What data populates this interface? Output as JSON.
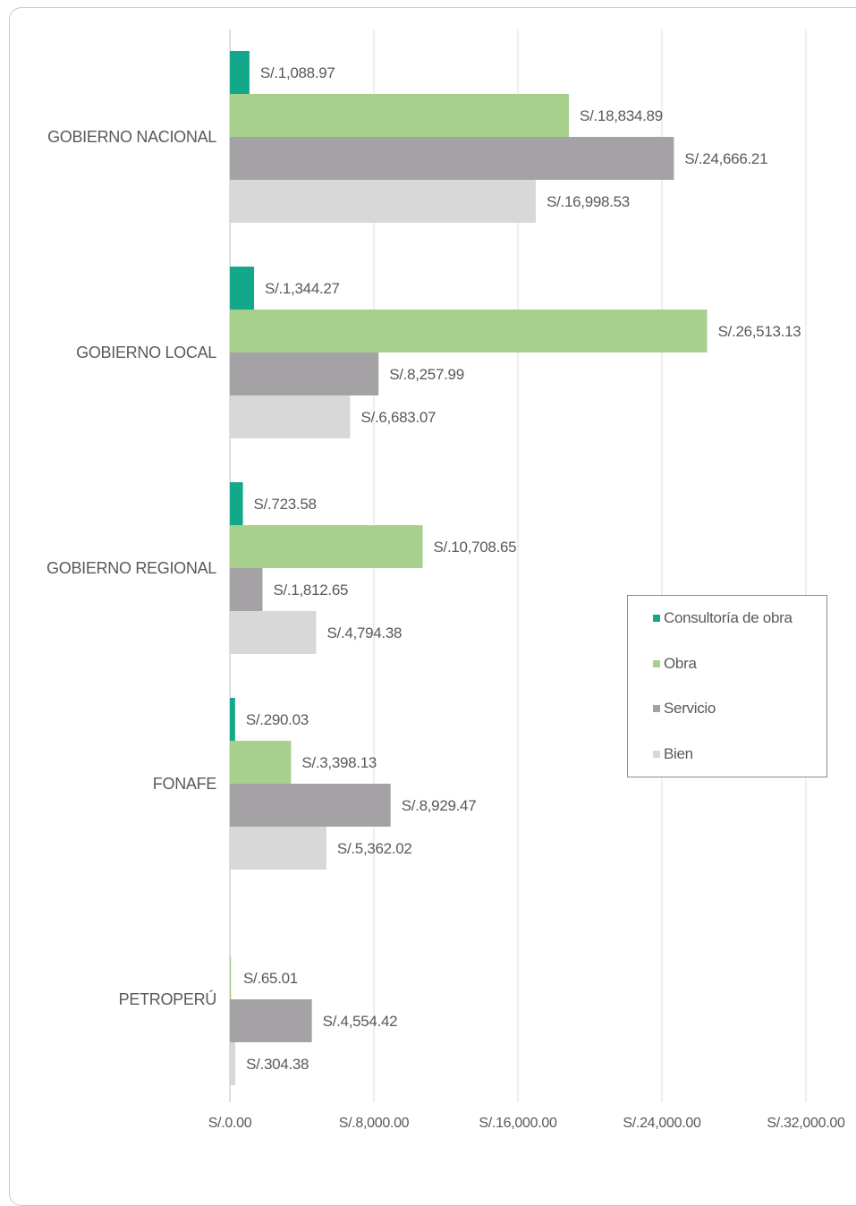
{
  "chart_data": {
    "type": "bar",
    "orientation": "horizontal",
    "categories": [
      "GOBIERNO NACIONAL",
      "GOBIERNO LOCAL",
      "GOBIERNO REGIONAL",
      "FONAFE",
      "PETROPERÚ"
    ],
    "series": [
      {
        "name": "Consultoría de obra",
        "color": "#14a88a",
        "values": [
          1088.97,
          1344.27,
          723.58,
          290.03,
          null
        ],
        "labels": [
          "S/.1,088.97",
          "S/.1,344.27",
          "S/.723.58",
          "S/.290.03",
          null
        ]
      },
      {
        "name": "Obra",
        "color": "#a8d08d",
        "values": [
          18834.89,
          26513.13,
          10708.65,
          3398.13,
          65.01
        ],
        "labels": [
          "S/.18,834.89",
          "S/.26,513.13",
          "S/.10,708.65",
          "S/.3,398.13",
          "S/.65.01"
        ]
      },
      {
        "name": "Servicio",
        "color": "#a4a2a4",
        "values": [
          24666.21,
          8257.99,
          1812.65,
          8929.47,
          4554.42
        ],
        "labels": [
          "S/.24,666.21",
          "S/.8,257.99",
          "S/.1,812.65",
          "S/.8,929.47",
          "S/.4,554.42"
        ]
      },
      {
        "name": "Bien",
        "color": "#d8d8d8",
        "values": [
          16998.53,
          6683.07,
          4794.38,
          5362.02,
          304.38
        ],
        "labels": [
          "S/.16,998.53",
          "S/.6,683.07",
          "S/.4,794.38",
          "S/.5,362.02",
          "S/.304.38"
        ]
      }
    ],
    "xlim": [
      0,
      32000
    ],
    "x_ticks": [
      0,
      8000,
      16000,
      24000,
      32000
    ],
    "x_tick_labels": [
      "S/.0.00",
      "S/.8,000.00",
      "S/.16,000.00",
      "S/.24,000.00",
      "S/.32,000.00"
    ],
    "grid": true,
    "legend_position": "right"
  }
}
